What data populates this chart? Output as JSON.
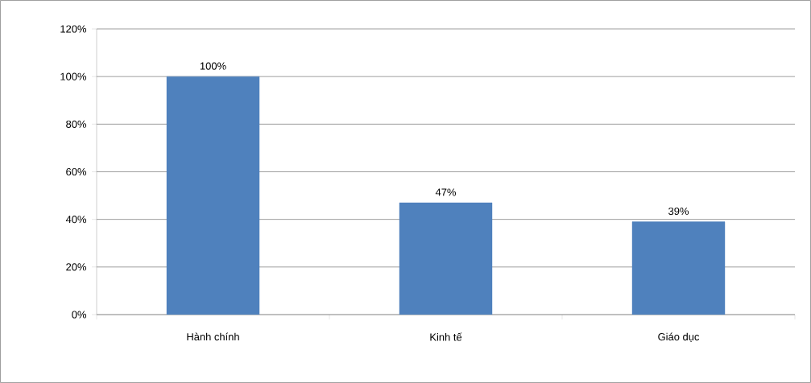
{
  "chart_data": {
    "type": "bar",
    "categories": [
      "Hành chính",
      "Kinh tế",
      "Giáo dục"
    ],
    "values": [
      100,
      47,
      39
    ],
    "color": "#4f81bd",
    "value_labels": [
      "100%",
      "47%",
      "39%"
    ],
    "ylim": [
      0,
      120
    ],
    "yticks": [
      {
        "value": 0,
        "label": "0%"
      },
      {
        "value": 20,
        "label": "20%"
      },
      {
        "value": 40,
        "label": "40%"
      },
      {
        "value": 60,
        "label": "60%"
      },
      {
        "value": 80,
        "label": "80%"
      },
      {
        "value": 100,
        "label": "100%"
      },
      {
        "value": 120,
        "label": "120%"
      }
    ],
    "grid": "y"
  }
}
